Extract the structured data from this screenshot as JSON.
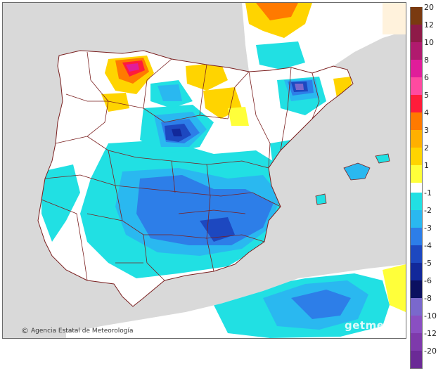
{
  "attribution": {
    "symbol": "©",
    "text": "Agencia Estatal de Meteorología"
  },
  "watermark": "getmeta",
  "legend": {
    "positive": [
      {
        "label": "20",
        "color": "#7a3a10"
      },
      {
        "label": "12",
        "color": "#8e1a48"
      },
      {
        "label": "10",
        "color": "#b01a6e"
      },
      {
        "label": "8",
        "color": "#e01d9a"
      },
      {
        "label": "6",
        "color": "#ff4aa0"
      },
      {
        "label": "5",
        "color": "#ff1c3a"
      },
      {
        "label": "4",
        "color": "#ff7a00"
      },
      {
        "label": "3",
        "color": "#ffb000"
      },
      {
        "label": "2",
        "color": "#ffd400"
      },
      {
        "label": "1",
        "color": "#ffff3a"
      }
    ],
    "negative": [
      {
        "label": "-1",
        "color": "#21e0e3"
      },
      {
        "label": "-2",
        "color": "#2ab8f0"
      },
      {
        "label": "-3",
        "color": "#2d7ee8"
      },
      {
        "label": "-4",
        "color": "#1d48c0"
      },
      {
        "label": "-5",
        "color": "#12289a"
      },
      {
        "label": "-6",
        "color": "#0b1060"
      },
      {
        "label": "-8",
        "color": "#7a68cc"
      },
      {
        "label": "-10",
        "color": "#8a4fc2"
      },
      {
        "label": "-12",
        "color": "#7e3aab"
      },
      {
        "label": "-20",
        "color": "#6b2a96"
      }
    ]
  }
}
